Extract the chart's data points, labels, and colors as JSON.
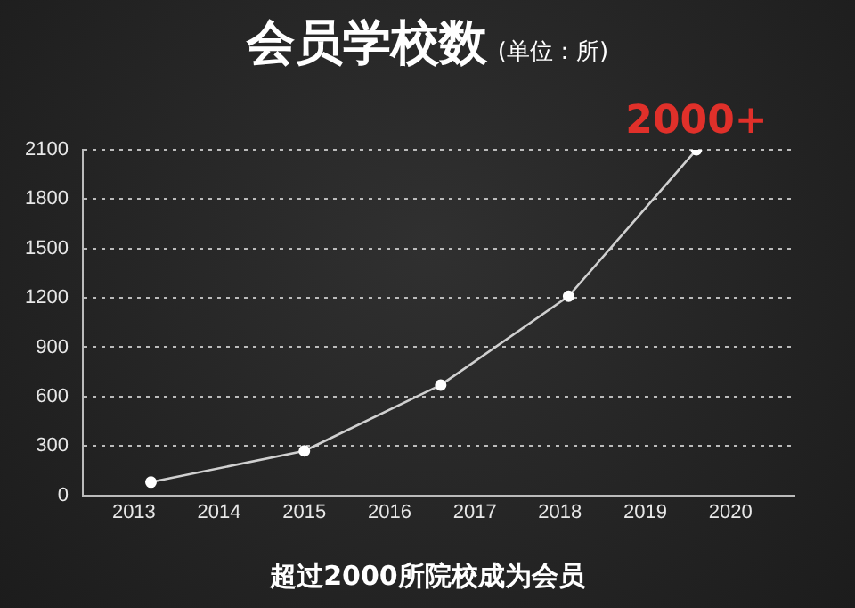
{
  "chart_data": {
    "type": "line",
    "title": "会员学校数",
    "subtitle": "(单位：所)",
    "x": [
      2013.2,
      2015.0,
      2016.6,
      2018.1,
      2019.6
    ],
    "series": [
      {
        "color": "#d0d0d0",
        "values": [
          80,
          270,
          670,
          1210,
          2100
        ]
      }
    ],
    "xlim": [
      2012.4,
      2020.75
    ],
    "xticks": [
      2013,
      2014,
      2015,
      2016,
      2017,
      2018,
      2019,
      2020
    ],
    "ylim": [
      0,
      2100
    ],
    "yticks": [
      0,
      300,
      600,
      900,
      1200,
      1500,
      1800,
      2100
    ],
    "grid": "y",
    "legend": false,
    "marker": "circle",
    "line_style": "solid",
    "annotations": [
      {
        "text": "2000+",
        "x": 2019.6,
        "y": 2100
      },
      "超过2000所院校成为会员"
    ]
  }
}
